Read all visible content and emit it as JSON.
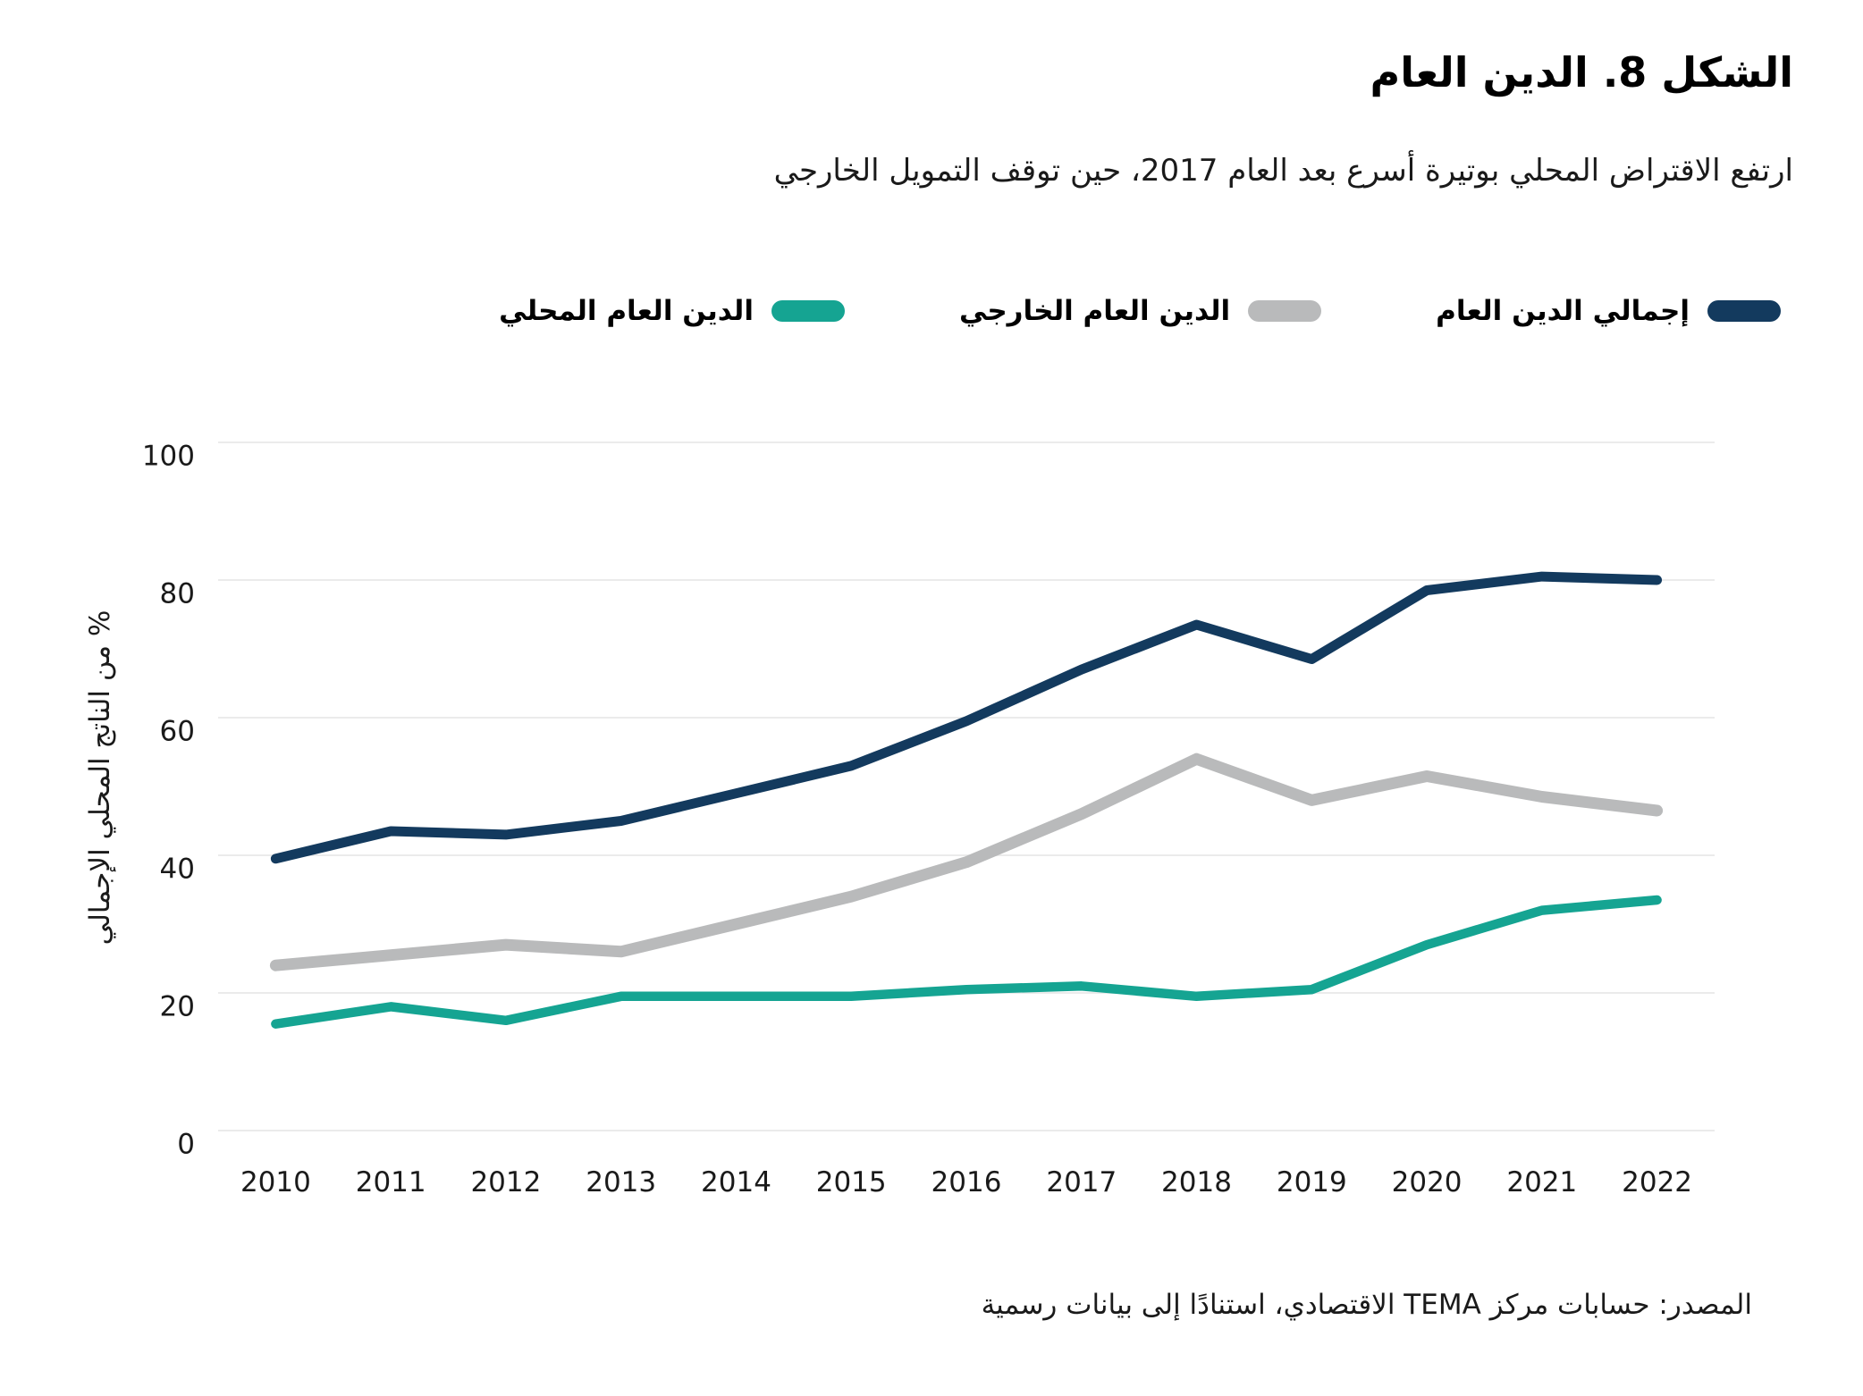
{
  "title": "الشكل 8. الدين العام",
  "subtitle": "ارتفع الاقتراض المحلي بوتيرة أسرع بعد العام 2017، حين توقف التمويل الخارجي",
  "source": "المصدر: حسابات مركز TEMA الاقتصادي، استنادًا إلى بيانات رسمية",
  "y_axis_title": "% من الناتج المحلي الإجمالي",
  "colors": {
    "total": "#133a5e",
    "external": "#b9babb",
    "domestic": "#15a492",
    "gridline": "#ebebeb",
    "text": "#1a1a1a"
  },
  "legend": {
    "items": [
      {
        "id": "total",
        "label": "إجمالي الدين العام",
        "color": "#133a5e"
      },
      {
        "id": "external",
        "label": "الدين العام الخارجي",
        "color": "#b9babb"
      },
      {
        "id": "domestic",
        "label": "الدين العام المحلي",
        "color": "#15a492"
      }
    ]
  },
  "chart_data": {
    "type": "line",
    "title": "الشكل 8. الدين العام",
    "subtitle": "ارتفع الاقتراض المحلي بوتيرة أسرع بعد العام 2017، حين توقف التمويل الخارجي",
    "xlabel": "",
    "ylabel": "% من الناتج المحلي الإجمالي",
    "ylim": [
      0,
      100
    ],
    "yticks": [
      0,
      20,
      40,
      60,
      80,
      100
    ],
    "grid": true,
    "legend_position": "top-right",
    "categories": [
      "2010",
      "2011",
      "2012",
      "2013",
      "2014",
      "2015",
      "2016",
      "2017",
      "2018",
      "2019",
      "2020",
      "2021",
      "2022"
    ],
    "series": [
      {
        "id": "total",
        "name": "إجمالي الدين العام",
        "color": "#133a5e",
        "values": [
          39.5,
          43.5,
          43,
          45,
          49,
          53,
          59.5,
          67,
          73.5,
          68.5,
          78.5,
          80.5,
          80
        ]
      },
      {
        "id": "external",
        "name": "الدين العام الخارجي",
        "color": "#b9babb",
        "values": [
          24,
          25.5,
          27,
          26,
          30,
          34,
          39,
          46,
          54,
          48,
          51.5,
          48.5,
          46.5
        ]
      },
      {
        "id": "domestic",
        "name": "الدين العام المحلي",
        "color": "#15a492",
        "values": [
          15.5,
          18,
          16,
          19.5,
          19.5,
          19.5,
          20.5,
          21,
          19.5,
          20.5,
          27,
          32,
          33.5
        ]
      }
    ]
  }
}
